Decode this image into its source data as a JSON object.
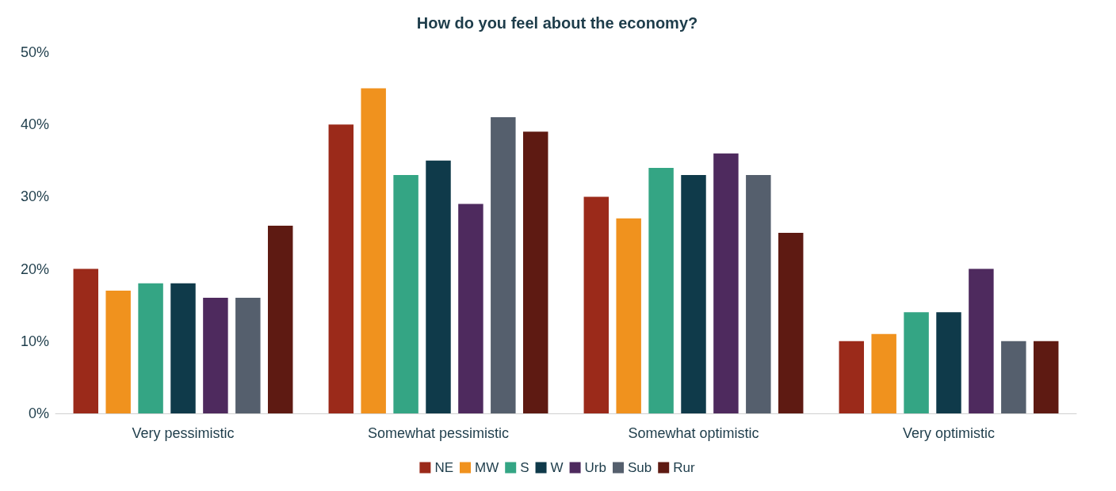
{
  "chart_data": {
    "type": "bar",
    "title": "How do you feel about the economy?",
    "categories": [
      "Very pessimistic",
      "Somewhat pessimistic",
      "Somewhat optimistic",
      "Very optimistic"
    ],
    "series": [
      {
        "name": "NE",
        "color": "#9b2a1a",
        "values": [
          20,
          40,
          30,
          10
        ]
      },
      {
        "name": "MW",
        "color": "#f0921e",
        "values": [
          17,
          45,
          27,
          11
        ]
      },
      {
        "name": "S",
        "color": "#34a584",
        "values": [
          18,
          33,
          34,
          14
        ]
      },
      {
        "name": "W",
        "color": "#0f3a4a",
        "values": [
          18,
          35,
          33,
          14
        ]
      },
      {
        "name": "Urb",
        "color": "#4e2a5e",
        "values": [
          16,
          29,
          36,
          20
        ]
      },
      {
        "name": "Sub",
        "color": "#555f6d",
        "values": [
          16,
          41,
          33,
          10
        ]
      },
      {
        "name": "Rur",
        "color": "#5e1a12",
        "values": [
          26,
          39,
          25,
          10
        ]
      }
    ],
    "ylim": [
      0,
      50
    ],
    "yticks": [
      {
        "value": 0,
        "label": "0%"
      },
      {
        "value": 10,
        "label": "10%"
      },
      {
        "value": 20,
        "label": "20%"
      },
      {
        "value": 30,
        "label": "30%"
      },
      {
        "value": 40,
        "label": "40%"
      },
      {
        "value": 50,
        "label": "50%"
      }
    ],
    "grid": false,
    "legend": "bottom"
  }
}
